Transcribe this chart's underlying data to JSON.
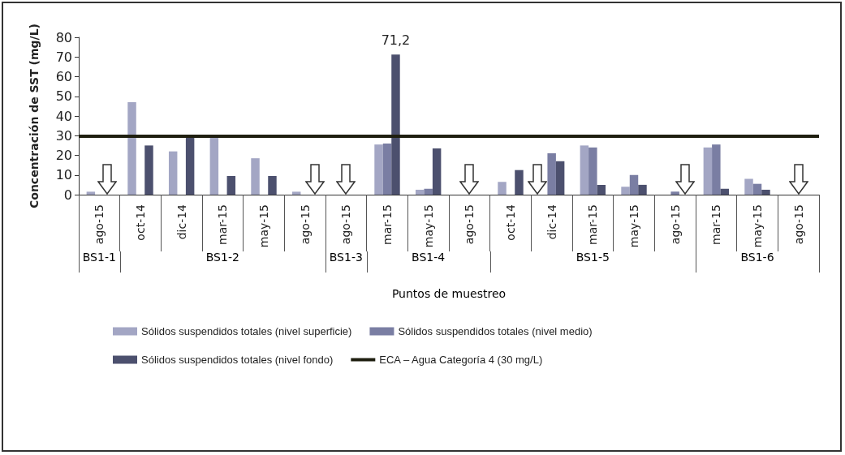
{
  "chart_data": {
    "type": "bar",
    "ylabel": "Concentración de SST (mg/L)",
    "xlabel": "Puntos de muestreo",
    "categories": [
      "ago-15",
      "oct-14",
      "dic-14",
      "mar-15",
      "may-15",
      "ago-15",
      "ago-15",
      "mar-15",
      "may-15",
      "ago-15",
      "oct-14",
      "dic-14",
      "mar-15",
      "may-15",
      "ago-15",
      "mar-15",
      "may-15",
      "ago-15"
    ],
    "series": [
      {
        "name": "Sólidos suspendidos totales (nivel superficie)",
        "color": "#a3a6c4",
        "values": [
          1.5,
          47,
          22,
          29,
          18.5,
          1.5,
          null,
          25.5,
          2.5,
          null,
          6.5,
          null,
          25,
          4,
          null,
          24,
          8,
          null
        ]
      },
      {
        "name": "Sólidos suspendidos totales (nivel medio)",
        "color": "#7a7ea3",
        "values": [
          null,
          null,
          null,
          null,
          null,
          null,
          null,
          26,
          3,
          null,
          null,
          21,
          24,
          10,
          1.5,
          25.5,
          5.5,
          null
        ]
      },
      {
        "name": "Sólidos suspendidos totales (nivel fondo)",
        "color": "#4c506e",
        "values": [
          null,
          25,
          30,
          9.5,
          9.5,
          null,
          null,
          71.2,
          23.5,
          null,
          12.5,
          17,
          5,
          5,
          null,
          3,
          2.5,
          null
        ],
        "value_labels": [
          null,
          null,
          null,
          null,
          null,
          null,
          null,
          "71,2",
          null,
          null,
          null,
          null,
          null,
          null,
          null,
          null,
          null,
          null
        ]
      }
    ],
    "ref_lines": [
      {
        "axis": "y",
        "value": 30,
        "label": "ECA – Agua Categoría 4 (30 mg/L)",
        "color": "#1f1f10"
      }
    ],
    "annotations": [
      "BS1-1",
      "BS1-2",
      "BS1-3",
      "BS1-4",
      "BS1-5",
      "BS1-6"
    ],
    "ylim": [
      0,
      80
    ],
    "yticks": [
      0,
      10,
      20,
      30,
      40,
      50,
      60,
      70,
      80
    ],
    "grid": false,
    "legend": "bottom"
  }
}
